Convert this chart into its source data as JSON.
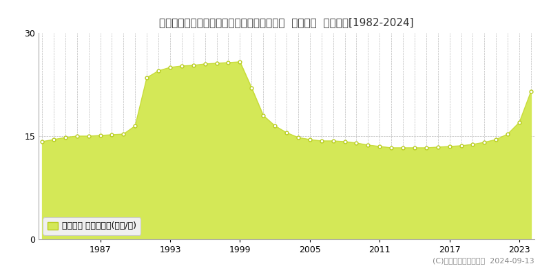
{
  "title": "北海道札幌市北区篠路１条３丁目１番５０外  地価公示  地価推移[1982-2024]",
  "years": [
    1982,
    1983,
    1984,
    1985,
    1986,
    1987,
    1988,
    1989,
    1990,
    1991,
    1992,
    1993,
    1994,
    1995,
    1996,
    1997,
    1998,
    1999,
    2000,
    2001,
    2002,
    2003,
    2004,
    2005,
    2006,
    2007,
    2008,
    2009,
    2010,
    2011,
    2012,
    2013,
    2014,
    2015,
    2016,
    2017,
    2018,
    2019,
    2020,
    2021,
    2022,
    2023,
    2024
  ],
  "values": [
    14.2,
    14.5,
    14.8,
    15.0,
    15.0,
    15.1,
    15.2,
    15.3,
    16.5,
    23.5,
    24.5,
    25.0,
    25.2,
    25.3,
    25.5,
    25.6,
    25.7,
    25.8,
    22.0,
    18.0,
    16.5,
    15.5,
    14.8,
    14.5,
    14.3,
    14.3,
    14.2,
    14.0,
    13.7,
    13.5,
    13.3,
    13.3,
    13.3,
    13.3,
    13.4,
    13.5,
    13.6,
    13.8,
    14.1,
    14.5,
    15.3,
    17.0,
    21.5
  ],
  "fill_color": "#d4e857",
  "line_color": "#c8dc3c",
  "marker_color": "#ffffff",
  "marker_edge_color": "#b8cc20",
  "background_color": "#ffffff",
  "plot_bg_color": "#ffffff",
  "grid_color": "#bbbbbb",
  "ylim": [
    0,
    30
  ],
  "yticks": [
    0,
    15,
    30
  ],
  "xtick_years": [
    1987,
    1993,
    1999,
    2005,
    2011,
    2017,
    2023
  ],
  "legend_label": "地価公示 平均坪単価(万円/坪)",
  "copyright_text": "(C)土地価格ドットコム  2024-09-13",
  "title_fontsize": 11,
  "legend_fontsize": 9,
  "tick_fontsize": 9,
  "copyright_fontsize": 8
}
